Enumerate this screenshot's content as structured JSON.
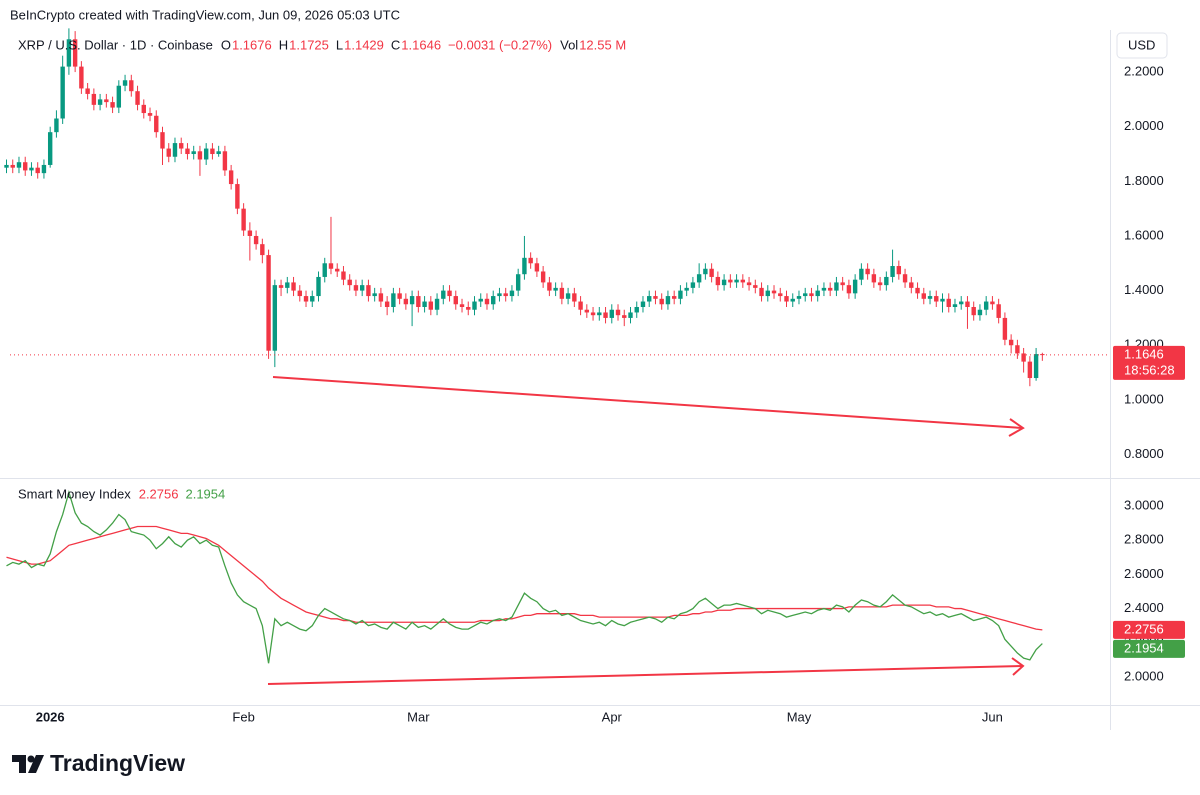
{
  "header": {
    "credit": "BeInCrypto created with TradingView.com, Jun 09, 2026 05:03 UTC"
  },
  "footer": {
    "logo": "TradingView"
  },
  "chart_data": [
    {
      "type": "candlestick",
      "title": "XRP / U.S. Dollar · 1D · Coinbase",
      "ohlc_labels": [
        "O",
        "H",
        "L",
        "C"
      ],
      "change": "−0.0031 (−0.27%)",
      "volume_label": "Vol",
      "volume": "12.55 M",
      "axis_unit": "USD",
      "countdown": "18:56:28",
      "up_color": "#089981",
      "down_color": "#f23645",
      "last_price_line": true,
      "ylim": [
        0.714,
        2.354
      ],
      "yticks": [
        {
          "value": 0.8,
          "label": "0.8000"
        },
        {
          "value": 1.0,
          "label": "1.0000"
        },
        {
          "value": 1.2,
          "label": "1.2000"
        },
        {
          "value": 1.4,
          "label": "1.4000"
        },
        {
          "value": 1.6,
          "label": "1.6000"
        },
        {
          "value": 1.8,
          "label": "1.8000"
        },
        {
          "value": 2.0,
          "label": "2.0000"
        },
        {
          "value": 2.2,
          "label": "2.2000"
        }
      ],
      "categories": [
        null,
        null,
        null,
        null,
        null,
        null,
        null,
        "2026",
        null,
        null,
        null,
        null,
        null,
        null,
        null,
        null,
        null,
        null,
        null,
        null,
        null,
        null,
        null,
        null,
        null,
        null,
        null,
        null,
        null,
        null,
        null,
        null,
        null,
        null,
        null,
        null,
        null,
        null,
        "Feb",
        null,
        null,
        null,
        null,
        null,
        null,
        null,
        null,
        null,
        null,
        null,
        null,
        null,
        null,
        null,
        null,
        null,
        null,
        null,
        null,
        null,
        null,
        null,
        null,
        null,
        null,
        null,
        "Mar",
        null,
        null,
        null,
        null,
        null,
        null,
        null,
        null,
        null,
        null,
        null,
        null,
        null,
        null,
        null,
        null,
        null,
        null,
        null,
        null,
        null,
        null,
        null,
        null,
        null,
        null,
        null,
        null,
        null,
        null,
        "Apr",
        null,
        null,
        null,
        null,
        null,
        null,
        null,
        null,
        null,
        null,
        null,
        null,
        null,
        null,
        null,
        null,
        null,
        null,
        null,
        null,
        null,
        null,
        null,
        null,
        null,
        null,
        null,
        null,
        null,
        "May",
        null,
        null,
        null,
        null,
        null,
        null,
        null,
        null,
        null,
        null,
        null,
        null,
        null,
        null,
        null,
        null,
        null,
        null,
        null,
        null,
        null,
        null,
        null,
        null,
        null,
        null,
        null,
        null,
        null,
        null,
        "Jun",
        null,
        null,
        null,
        null,
        null,
        null,
        null,
        null
      ],
      "open": [
        1.85,
        1.86,
        1.85,
        1.87,
        1.84,
        1.85,
        1.83,
        1.86,
        1.98,
        2.03,
        2.22,
        2.32,
        2.22,
        2.14,
        2.12,
        2.08,
        2.1,
        2.09,
        2.07,
        2.15,
        2.17,
        2.13,
        2.08,
        2.05,
        2.04,
        1.98,
        1.92,
        1.89,
        1.94,
        1.92,
        1.9,
        1.91,
        1.88,
        1.92,
        1.9,
        1.91,
        1.84,
        1.79,
        1.7,
        1.62,
        1.6,
        1.57,
        1.53,
        1.18,
        1.42,
        1.41,
        1.43,
        1.4,
        1.38,
        1.36,
        1.38,
        1.45,
        1.5,
        1.48,
        1.47,
        1.44,
        1.42,
        1.4,
        1.42,
        1.38,
        1.39,
        1.36,
        1.34,
        1.39,
        1.37,
        1.35,
        1.38,
        1.34,
        1.36,
        1.33,
        1.37,
        1.4,
        1.38,
        1.35,
        1.34,
        1.33,
        1.36,
        1.37,
        1.35,
        1.38,
        1.39,
        1.38,
        1.4,
        1.46,
        1.52,
        1.5,
        1.47,
        1.43,
        1.4,
        1.41,
        1.37,
        1.39,
        1.36,
        1.33,
        1.32,
        1.31,
        1.32,
        1.3,
        1.33,
        1.31,
        1.3,
        1.32,
        1.34,
        1.36,
        1.38,
        1.37,
        1.35,
        1.38,
        1.37,
        1.4,
        1.41,
        1.43,
        1.46,
        1.48,
        1.45,
        1.42,
        1.44,
        1.43,
        1.44,
        1.43,
        1.42,
        1.41,
        1.38,
        1.4,
        1.39,
        1.38,
        1.36,
        1.37,
        1.38,
        1.39,
        1.38,
        1.4,
        1.41,
        1.4,
        1.43,
        1.42,
        1.39,
        1.44,
        1.48,
        1.46,
        1.43,
        1.42,
        1.45,
        1.49,
        1.46,
        1.43,
        1.41,
        1.39,
        1.37,
        1.38,
        1.36,
        1.37,
        1.34,
        1.35,
        1.36,
        1.34,
        1.31,
        1.33,
        1.36,
        1.35,
        1.3,
        1.22,
        1.2,
        1.17,
        1.14,
        1.08,
        1.1676
      ],
      "high": [
        1.88,
        1.88,
        1.89,
        1.89,
        1.87,
        1.87,
        1.88,
        2.0,
        2.06,
        2.26,
        2.36,
        2.35,
        2.24,
        2.16,
        2.14,
        2.12,
        2.12,
        2.11,
        2.17,
        2.19,
        2.19,
        2.15,
        2.1,
        2.07,
        2.06,
        2.0,
        1.94,
        1.96,
        1.96,
        1.94,
        1.93,
        1.93,
        1.94,
        1.94,
        1.93,
        1.93,
        1.86,
        1.81,
        1.72,
        1.65,
        1.62,
        1.59,
        1.55,
        1.44,
        1.44,
        1.45,
        1.45,
        1.42,
        1.4,
        1.4,
        1.47,
        1.52,
        1.67,
        1.5,
        1.49,
        1.46,
        1.44,
        1.44,
        1.44,
        1.41,
        1.41,
        1.38,
        1.41,
        1.41,
        1.39,
        1.4,
        1.4,
        1.38,
        1.38,
        1.39,
        1.42,
        1.42,
        1.4,
        1.37,
        1.36,
        1.38,
        1.39,
        1.39,
        1.4,
        1.41,
        1.41,
        1.42,
        1.48,
        1.6,
        1.54,
        1.52,
        1.49,
        1.45,
        1.43,
        1.43,
        1.41,
        1.41,
        1.38,
        1.35,
        1.34,
        1.34,
        1.34,
        1.35,
        1.35,
        1.33,
        1.34,
        1.36,
        1.38,
        1.4,
        1.4,
        1.39,
        1.4,
        1.4,
        1.42,
        1.43,
        1.45,
        1.5,
        1.5,
        1.5,
        1.47,
        1.46,
        1.46,
        1.46,
        1.46,
        1.45,
        1.44,
        1.43,
        1.42,
        1.42,
        1.41,
        1.4,
        1.39,
        1.4,
        1.41,
        1.41,
        1.42,
        1.43,
        1.43,
        1.45,
        1.45,
        1.44,
        1.46,
        1.5,
        1.5,
        1.48,
        1.45,
        1.47,
        1.55,
        1.51,
        1.48,
        1.45,
        1.43,
        1.41,
        1.4,
        1.4,
        1.39,
        1.39,
        1.37,
        1.38,
        1.38,
        1.36,
        1.35,
        1.38,
        1.38,
        1.37,
        1.32,
        1.24,
        1.22,
        1.19,
        1.16,
        1.19,
        1.1725
      ],
      "low": [
        1.83,
        1.83,
        1.83,
        1.82,
        1.82,
        1.81,
        1.81,
        1.85,
        1.96,
        2.01,
        2.19,
        2.2,
        2.12,
        2.1,
        2.06,
        2.06,
        2.07,
        2.05,
        2.05,
        2.13,
        2.11,
        2.06,
        2.03,
        2.02,
        1.96,
        1.86,
        1.87,
        1.87,
        1.9,
        1.88,
        1.88,
        1.82,
        1.86,
        1.88,
        1.89,
        1.82,
        1.77,
        1.68,
        1.6,
        1.51,
        1.55,
        1.5,
        1.15,
        1.12,
        1.38,
        1.39,
        1.38,
        1.36,
        1.34,
        1.34,
        1.36,
        1.43,
        1.46,
        1.45,
        1.42,
        1.4,
        1.38,
        1.38,
        1.36,
        1.36,
        1.34,
        1.31,
        1.32,
        1.35,
        1.33,
        1.27,
        1.32,
        1.32,
        1.31,
        1.31,
        1.35,
        1.36,
        1.33,
        1.32,
        1.31,
        1.31,
        1.34,
        1.33,
        1.33,
        1.36,
        1.36,
        1.36,
        1.38,
        1.44,
        1.48,
        1.45,
        1.41,
        1.38,
        1.38,
        1.35,
        1.35,
        1.34,
        1.31,
        1.3,
        1.29,
        1.29,
        1.28,
        1.28,
        1.29,
        1.27,
        1.28,
        1.3,
        1.32,
        1.34,
        1.35,
        1.33,
        1.33,
        1.35,
        1.35,
        1.38,
        1.39,
        1.41,
        1.44,
        1.43,
        1.4,
        1.4,
        1.41,
        1.41,
        1.41,
        1.4,
        1.39,
        1.36,
        1.36,
        1.37,
        1.36,
        1.34,
        1.34,
        1.35,
        1.36,
        1.36,
        1.36,
        1.38,
        1.38,
        1.38,
        1.4,
        1.37,
        1.37,
        1.42,
        1.44,
        1.41,
        1.4,
        1.4,
        1.43,
        1.44,
        1.41,
        1.39,
        1.37,
        1.35,
        1.35,
        1.34,
        1.32,
        1.32,
        1.32,
        1.33,
        1.26,
        1.29,
        1.29,
        1.31,
        1.33,
        1.28,
        1.2,
        1.17,
        1.15,
        1.1,
        1.05,
        1.07,
        1.1429
      ],
      "close": [
        1.86,
        1.85,
        1.87,
        1.84,
        1.85,
        1.83,
        1.86,
        1.98,
        2.03,
        2.22,
        2.32,
        2.22,
        2.14,
        2.12,
        2.08,
        2.1,
        2.09,
        2.07,
        2.15,
        2.17,
        2.13,
        2.08,
        2.05,
        2.04,
        1.98,
        1.92,
        1.89,
        1.94,
        1.92,
        1.9,
        1.91,
        1.88,
        1.92,
        1.9,
        1.91,
        1.84,
        1.79,
        1.7,
        1.62,
        1.6,
        1.57,
        1.53,
        1.18,
        1.42,
        1.41,
        1.43,
        1.4,
        1.38,
        1.36,
        1.38,
        1.45,
        1.5,
        1.48,
        1.47,
        1.44,
        1.42,
        1.4,
        1.42,
        1.38,
        1.39,
        1.36,
        1.34,
        1.39,
        1.37,
        1.35,
        1.38,
        1.34,
        1.36,
        1.33,
        1.37,
        1.4,
        1.38,
        1.35,
        1.34,
        1.33,
        1.36,
        1.37,
        1.35,
        1.38,
        1.39,
        1.38,
        1.4,
        1.46,
        1.52,
        1.5,
        1.47,
        1.43,
        1.4,
        1.41,
        1.37,
        1.39,
        1.36,
        1.33,
        1.32,
        1.31,
        1.32,
        1.3,
        1.33,
        1.31,
        1.3,
        1.32,
        1.34,
        1.36,
        1.38,
        1.37,
        1.35,
        1.38,
        1.37,
        1.4,
        1.41,
        1.43,
        1.46,
        1.48,
        1.45,
        1.42,
        1.44,
        1.43,
        1.44,
        1.43,
        1.42,
        1.41,
        1.38,
        1.4,
        1.39,
        1.38,
        1.36,
        1.37,
        1.38,
        1.39,
        1.38,
        1.4,
        1.41,
        1.4,
        1.43,
        1.42,
        1.39,
        1.44,
        1.48,
        1.46,
        1.43,
        1.42,
        1.45,
        1.49,
        1.46,
        1.43,
        1.41,
        1.39,
        1.37,
        1.38,
        1.36,
        1.37,
        1.34,
        1.35,
        1.36,
        1.34,
        1.31,
        1.33,
        1.36,
        1.35,
        1.3,
        1.22,
        1.2,
        1.17,
        1.14,
        1.08,
        1.1676,
        1.1646
      ]
    },
    {
      "type": "line",
      "title": "Smart Money Index",
      "ylim": [
        1.836,
        3.152
      ],
      "yticks": [
        {
          "value": 2.0,
          "label": "2.0000"
        },
        {
          "value": 2.2,
          "label": "2.2000"
        },
        {
          "value": 2.4,
          "label": "2.4000"
        },
        {
          "value": 2.6,
          "label": "2.6000"
        },
        {
          "value": 2.8,
          "label": "2.8000"
        },
        {
          "value": 3.0,
          "label": "3.0000"
        }
      ],
      "series": [
        {
          "color": "#f23645",
          "values": [
            2.7,
            2.69,
            2.68,
            2.67,
            2.66,
            2.66,
            2.67,
            2.68,
            2.71,
            2.74,
            2.77,
            2.78,
            2.79,
            2.8,
            2.81,
            2.82,
            2.83,
            2.84,
            2.85,
            2.86,
            2.87,
            2.88,
            2.88,
            2.88,
            2.88,
            2.87,
            2.86,
            2.85,
            2.84,
            2.84,
            2.83,
            2.82,
            2.81,
            2.79,
            2.77,
            2.74,
            2.71,
            2.68,
            2.65,
            2.62,
            2.59,
            2.56,
            2.52,
            2.49,
            2.46,
            2.44,
            2.42,
            2.4,
            2.38,
            2.37,
            2.36,
            2.35,
            2.34,
            2.34,
            2.33,
            2.33,
            2.32,
            2.32,
            2.32,
            2.32,
            2.32,
            2.32,
            2.32,
            2.32,
            2.32,
            2.32,
            2.32,
            2.32,
            2.32,
            2.32,
            2.32,
            2.32,
            2.32,
            2.32,
            2.32,
            2.32,
            2.33,
            2.33,
            2.33,
            2.33,
            2.34,
            2.34,
            2.35,
            2.36,
            2.36,
            2.37,
            2.37,
            2.37,
            2.37,
            2.37,
            2.37,
            2.37,
            2.36,
            2.36,
            2.36,
            2.35,
            2.35,
            2.35,
            2.35,
            2.35,
            2.35,
            2.35,
            2.35,
            2.35,
            2.35,
            2.35,
            2.35,
            2.36,
            2.36,
            2.36,
            2.37,
            2.37,
            2.38,
            2.38,
            2.39,
            2.39,
            2.39,
            2.4,
            2.4,
            2.4,
            2.4,
            2.4,
            2.4,
            2.4,
            2.4,
            2.4,
            2.4,
            2.4,
            2.4,
            2.4,
            2.4,
            2.4,
            2.4,
            2.4,
            2.4,
            2.41,
            2.41,
            2.41,
            2.41,
            2.41,
            2.41,
            2.41,
            2.42,
            2.42,
            2.42,
            2.42,
            2.42,
            2.42,
            2.42,
            2.41,
            2.41,
            2.41,
            2.4,
            2.4,
            2.39,
            2.38,
            2.37,
            2.36,
            2.35,
            2.34,
            2.33,
            2.32,
            2.31,
            2.3,
            2.29,
            2.28,
            2.2756
          ]
        },
        {
          "color": "#43a047",
          "values": [
            2.65,
            2.67,
            2.66,
            2.68,
            2.64,
            2.66,
            2.65,
            2.72,
            2.85,
            2.95,
            3.08,
            2.96,
            2.9,
            2.88,
            2.85,
            2.83,
            2.86,
            2.9,
            2.95,
            2.92,
            2.85,
            2.84,
            2.83,
            2.8,
            2.75,
            2.78,
            2.82,
            2.78,
            2.76,
            2.8,
            2.82,
            2.78,
            2.8,
            2.77,
            2.76,
            2.65,
            2.55,
            2.48,
            2.44,
            2.42,
            2.4,
            2.3,
            2.08,
            2.34,
            2.3,
            2.32,
            2.3,
            2.28,
            2.27,
            2.3,
            2.36,
            2.4,
            2.38,
            2.36,
            2.34,
            2.33,
            2.31,
            2.33,
            2.3,
            2.31,
            2.29,
            2.28,
            2.32,
            2.3,
            2.28,
            2.32,
            2.29,
            2.3,
            2.28,
            2.31,
            2.34,
            2.31,
            2.29,
            2.28,
            2.28,
            2.3,
            2.32,
            2.31,
            2.33,
            2.34,
            2.33,
            2.35,
            2.42,
            2.49,
            2.46,
            2.44,
            2.4,
            2.38,
            2.39,
            2.36,
            2.37,
            2.35,
            2.33,
            2.32,
            2.31,
            2.32,
            2.3,
            2.33,
            2.31,
            2.3,
            2.32,
            2.33,
            2.34,
            2.35,
            2.34,
            2.32,
            2.35,
            2.34,
            2.37,
            2.38,
            2.4,
            2.44,
            2.46,
            2.43,
            2.4,
            2.42,
            2.42,
            2.43,
            2.42,
            2.41,
            2.4,
            2.37,
            2.39,
            2.38,
            2.37,
            2.35,
            2.36,
            2.37,
            2.38,
            2.37,
            2.39,
            2.4,
            2.39,
            2.42,
            2.41,
            2.38,
            2.42,
            2.45,
            2.44,
            2.42,
            2.41,
            2.44,
            2.48,
            2.45,
            2.42,
            2.41,
            2.39,
            2.37,
            2.38,
            2.36,
            2.37,
            2.35,
            2.36,
            2.37,
            2.35,
            2.33,
            2.34,
            2.35,
            2.33,
            2.3,
            2.22,
            2.18,
            2.14,
            2.11,
            2.1,
            2.16,
            2.1954
          ]
        }
      ]
    }
  ]
}
